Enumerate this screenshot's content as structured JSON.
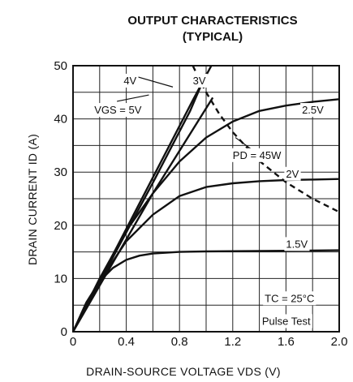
{
  "chart_data": {
    "type": "line",
    "title": "OUTPUT CHARACTERISTICS",
    "subtitle": "(TYPICAL)",
    "xlabel": "DRAIN-SOURCE VOLTAGE  VDS (V)",
    "ylabel": "DRAIN CURRENT  ID (A)",
    "xlim": [
      0,
      2.0
    ],
    "ylim": [
      0,
      50
    ],
    "x_ticks": [
      "0",
      "0.4",
      "0.8",
      "1.2",
      "1.6",
      "2.0"
    ],
    "y_ticks": [
      "0",
      "10",
      "20",
      "30",
      "40",
      "50"
    ],
    "grid": true,
    "series": [
      {
        "name": "VGS = 5V",
        "style": "solid",
        "x": [
          0,
          0.3,
          0.6,
          0.9,
          1.05
        ],
        "y": [
          0,
          14.5,
          29,
          43.5,
          50.5
        ]
      },
      {
        "name": "4V",
        "style": "solid",
        "x": [
          0,
          0.3,
          0.6,
          0.88,
          1.0
        ],
        "y": [
          0,
          14,
          28,
          41.5,
          48.5
        ]
      },
      {
        "name": "3V",
        "style": "solid",
        "x": [
          0,
          0.3,
          0.6,
          0.9,
          1.05
        ],
        "y": [
          0,
          13,
          26,
          38,
          44
        ]
      },
      {
        "name": "2.5V",
        "style": "solid",
        "x": [
          0,
          0.2,
          0.4,
          0.6,
          0.8,
          1.0,
          1.2,
          1.4,
          1.6,
          1.8,
          2.0
        ],
        "y": [
          0,
          10,
          19,
          26,
          32,
          36.5,
          39.5,
          41.5,
          42.5,
          43.2,
          43.7
        ]
      },
      {
        "name": "2V",
        "style": "solid",
        "x": [
          0,
          0.2,
          0.4,
          0.6,
          0.8,
          1.0,
          1.2,
          1.4,
          1.6,
          1.8,
          2.0
        ],
        "y": [
          0,
          9.5,
          17,
          22,
          25.5,
          27.2,
          27.9,
          28.3,
          28.5,
          28.6,
          28.7
        ]
      },
      {
        "name": "1.5V",
        "style": "solid",
        "x": [
          0,
          0.1,
          0.2,
          0.3,
          0.4,
          0.5,
          0.6,
          0.8,
          1.0,
          1.5,
          2.0
        ],
        "y": [
          0,
          5.5,
          9.5,
          12,
          13.5,
          14.3,
          14.7,
          15,
          15.1,
          15.2,
          15.3
        ]
      },
      {
        "name": "PD = 45W",
        "style": "dashed",
        "x": [
          0.9,
          0.95,
          1.0,
          1.1,
          1.2,
          1.4,
          1.6,
          1.8,
          2.0
        ],
        "y": [
          50,
          47.4,
          45,
          40.9,
          37.5,
          32.1,
          28.1,
          25,
          22.5
        ]
      }
    ],
    "annotations": [
      {
        "text": "4V",
        "x": 0.38,
        "y": 46.5
      },
      {
        "text": "3V",
        "x": 0.9,
        "y": 46.5
      },
      {
        "text": "VGS = 5V",
        "x": 0.16,
        "y": 41
      },
      {
        "text": "2.5V",
        "x": 1.72,
        "y": 41
      },
      {
        "text": "PD = 45W",
        "x": 1.2,
        "y": 32.5
      },
      {
        "text": "2V",
        "x": 1.6,
        "y": 29
      },
      {
        "text": "1.5V",
        "x": 1.6,
        "y": 15.8
      },
      {
        "text": "TC = 25°C",
        "x": 1.44,
        "y": 5.6
      },
      {
        "text": "Pulse Test",
        "x": 1.42,
        "y": 1.3
      }
    ]
  }
}
